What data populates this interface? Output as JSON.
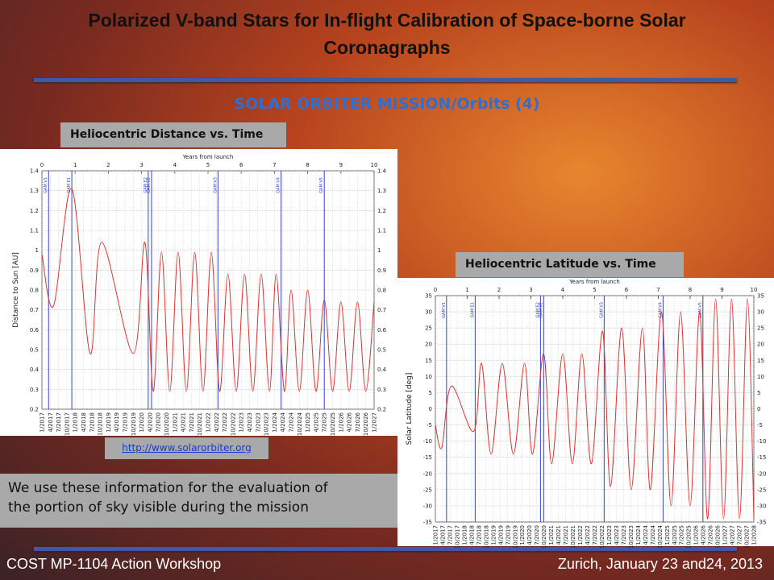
{
  "header": {
    "title": "Polarized V-band Stars for In-flight Calibration of Space-borne Solar Coronagraphs",
    "subtitle": "SOLAR ORBITER  MISSION/Orbits (4)"
  },
  "link": "http://www.solarorbiter.org",
  "note": {
    "lines": [
      "We use these information for the evaluation of",
      "the portion of sky visible during the mission"
    ]
  },
  "footer": {
    "left": "COST MP-1104 Action Workshop",
    "right": "Zurich, January 23 and24, 2013"
  },
  "chart_data": [
    {
      "type": "line",
      "title": "Heliocentric Distance vs. Time",
      "xlabel": "Years from launch",
      "ylabel": "Distance to Sun [AU]",
      "xlim": [
        0,
        10
      ],
      "xticks": [
        0,
        1,
        2,
        3,
        4,
        5,
        6,
        7,
        8,
        9,
        10
      ],
      "ylim": [
        0.2,
        1.4
      ],
      "yticks": [
        0.2,
        0.3,
        0.4,
        0.5,
        0.6,
        0.7,
        0.8,
        0.9,
        1,
        1.1,
        1.2,
        1.3,
        1.4
      ],
      "grid": true,
      "dates": [
        "1/2017",
        "4/2017",
        "7/2017",
        "10/2017",
        "1/2018",
        "4/2018",
        "7/2018",
        "10/2018",
        "1/2019",
        "4/2019",
        "7/2019",
        "10/2019",
        "1/2020",
        "4/2020",
        "7/2020",
        "10/2020",
        "1/2021",
        "4/2021",
        "7/2021",
        "10/2021",
        "1/2022",
        "4/2022",
        "7/2022",
        "10/2022",
        "1/2023",
        "4/2023",
        "7/2023",
        "10/2023",
        "1/2024",
        "4/2024",
        "7/2024",
        "10/2024",
        "1/2025",
        "4/2025",
        "7/2025",
        "10/2025",
        "1/2026",
        "4/2026",
        "7/2026",
        "10/2026",
        "1/2027"
      ],
      "events": [
        {
          "label": "GAM V1",
          "x": 0.2
        },
        {
          "label": "GAM E1",
          "x": 0.9
        },
        {
          "label": "GAM E2",
          "x": 3.2
        },
        {
          "label": "GAM V2",
          "x": 3.3
        },
        {
          "label": "GAM V3",
          "x": 5.3
        },
        {
          "label": "GAM V4",
          "x": 7.2
        },
        {
          "label": "GAM V5",
          "x": 8.5
        }
      ],
      "event_color": "#3344cc",
      "series": [
        {
          "color": "#dd3333",
          "x": [
            0,
            0.35,
            0.9,
            1.45,
            1.8,
            2.75,
            3.1,
            3.35,
            3.6,
            3.85,
            4.1,
            4.35,
            4.6,
            4.85,
            5.1,
            5.35,
            5.6,
            5.85,
            6.1,
            6.35,
            6.6,
            6.85,
            7.05,
            7.3,
            7.5,
            7.75,
            8.0,
            8.25,
            8.5,
            8.75,
            9.0,
            9.25,
            9.5,
            9.75,
            10
          ],
          "values": [
            0.98,
            0.72,
            1.31,
            0.48,
            1.04,
            0.48,
            1.04,
            0.29,
            0.99,
            0.29,
            0.99,
            0.29,
            0.99,
            0.29,
            0.99,
            0.29,
            0.88,
            0.29,
            0.88,
            0.29,
            0.88,
            0.29,
            0.88,
            0.29,
            0.8,
            0.29,
            0.8,
            0.29,
            0.75,
            0.29,
            0.74,
            0.29,
            0.74,
            0.29,
            0.74
          ]
        }
      ]
    },
    {
      "type": "line",
      "title": "Heliocentric Latitude vs. Time",
      "xlabel": "Years from launch",
      "ylabel": "Solar Latitude [deg]",
      "xlim": [
        0,
        10
      ],
      "xticks": [
        0,
        1,
        2,
        3,
        4,
        5,
        6,
        7,
        8,
        9,
        10
      ],
      "ylim": [
        -35,
        35
      ],
      "yticks": [
        -35,
        -30,
        -25,
        -20,
        -15,
        -10,
        -5,
        0,
        5,
        10,
        15,
        20,
        25,
        30,
        35
      ],
      "grid": true,
      "dates": [
        "1/2017",
        "4/2017",
        "7/2017",
        "10/2017",
        "1/2018",
        "4/2018",
        "7/2018",
        "10/2018",
        "1/2019",
        "4/2019",
        "7/2019",
        "10/2019",
        "1/2020",
        "4/2020",
        "7/2020",
        "10/2020",
        "1/2021",
        "4/2021",
        "7/2021",
        "10/2021",
        "1/2022",
        "4/2022",
        "7/2022",
        "10/2022",
        "1/2023",
        "4/2023",
        "7/2023",
        "10/2023",
        "1/2024",
        "4/2024",
        "7/2024",
        "10/2024",
        "1/2025",
        "4/2025",
        "7/2025",
        "10/2025",
        "1/2026",
        "4/2026",
        "7/2026",
        "10/2026",
        "1/2027",
        "4/2027",
        "7/2027",
        "10/2027",
        "1/2028"
      ],
      "events": [
        {
          "label": "GAM V1",
          "x": 0.35
        },
        {
          "label": "GAM E1",
          "x": 1.25
        },
        {
          "label": "GAM E2",
          "x": 3.3
        },
        {
          "label": "GAM V2",
          "x": 3.4
        },
        {
          "label": "GAM V3",
          "x": 5.3
        },
        {
          "label": "GAM V4",
          "x": 7.15
        },
        {
          "label": "GAM V5",
          "x": 8.4
        }
      ],
      "event_color": "#3344cc",
      "series": [
        {
          "color": "#dd3333",
          "x": [
            0,
            0.2,
            0.5,
            1.2,
            1.45,
            1.75,
            2.1,
            2.45,
            2.8,
            3.05,
            3.4,
            3.65,
            4.0,
            4.3,
            4.6,
            4.9,
            5.25,
            5.5,
            5.85,
            6.15,
            6.5,
            6.75,
            7.1,
            7.4,
            7.7,
            8.0,
            8.3,
            8.55,
            8.8,
            9.05,
            9.3,
            9.55,
            9.8,
            10
          ],
          "values": [
            -5,
            -12,
            7,
            -7,
            14,
            -14,
            14,
            -14,
            14,
            -14,
            17,
            -17,
            17,
            -17,
            17,
            -17,
            24,
            -24,
            25,
            -25,
            25,
            -25,
            30,
            -30,
            30,
            -30,
            30,
            -34,
            34,
            -34,
            34,
            -34,
            34,
            -34
          ]
        }
      ]
    }
  ]
}
